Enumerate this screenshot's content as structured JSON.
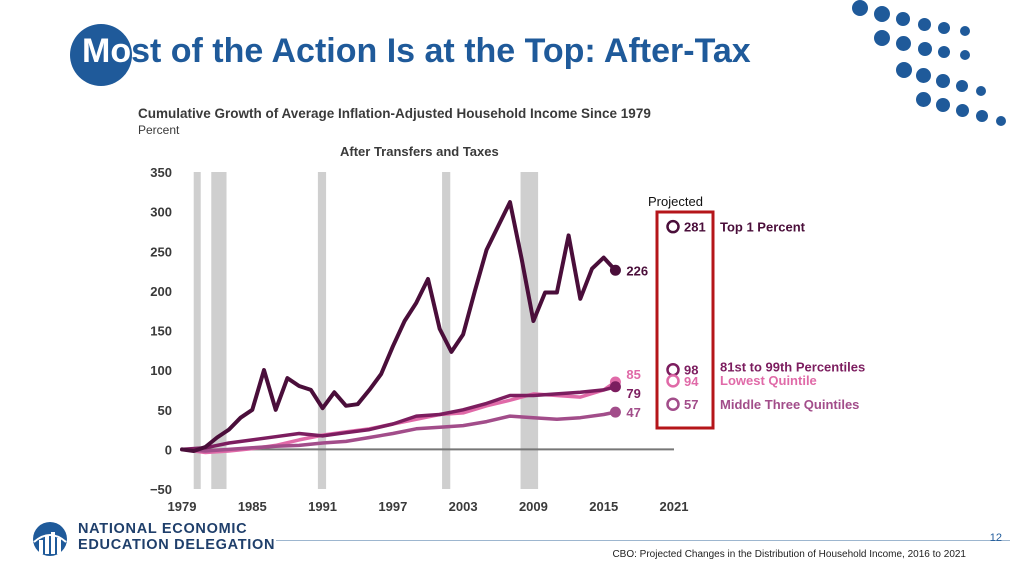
{
  "slide": {
    "title_lead": "Mo",
    "title_rest": "st of the Action Is at the Top: After-Tax",
    "page_number": "12",
    "source": "CBO: Projected Changes in the Distribution of Household Income, 2016 to 2021",
    "org_line1": "NATIONAL ECONOMIC",
    "org_line2": "EDUCATION DELEGATION",
    "accent_color": "#1f5a9a"
  },
  "chart_data": {
    "type": "line",
    "title": "Cumulative Growth of Average Inflation-Adjusted Household Income Since 1979",
    "ylabel": "Percent",
    "subtitle": "After Transfers and Taxes",
    "ylim": [
      -50,
      350
    ],
    "xlim": [
      1979,
      2021
    ],
    "yticks": [
      "350",
      "300",
      "250",
      "200",
      "150",
      "100",
      "50",
      "0",
      "−50"
    ],
    "ytick_values": [
      350,
      300,
      250,
      200,
      150,
      100,
      50,
      0,
      -50
    ],
    "xticks": [
      "1979",
      "1985",
      "1991",
      "1997",
      "2003",
      "2009",
      "2015",
      "2021"
    ],
    "xtick_values": [
      1979,
      1985,
      1991,
      1997,
      2003,
      2009,
      2015,
      2021
    ],
    "recessions": [
      [
        1980,
        1980.6
      ],
      [
        1981.5,
        1982.8
      ],
      [
        1990.6,
        1991.3
      ],
      [
        2001.2,
        2001.9
      ],
      [
        2007.9,
        2009.4
      ]
    ],
    "projected_label": "Projected",
    "series": [
      {
        "name": "Top 1 Percent",
        "color": "#4a0e3a",
        "width": 4,
        "x": [
          1979,
          1980,
          1981,
          1982,
          1983,
          1984,
          1985,
          1986,
          1987,
          1988,
          1989,
          1990,
          1991,
          1992,
          1993,
          1994,
          1995,
          1996,
          1997,
          1998,
          1999,
          2000,
          2001,
          2002,
          2003,
          2004,
          2005,
          2006,
          2007,
          2008,
          2009,
          2010,
          2011,
          2012,
          2013,
          2014,
          2015,
          2016
        ],
        "values": [
          0,
          -2,
          3,
          15,
          25,
          40,
          50,
          100,
          50,
          90,
          80,
          75,
          52,
          72,
          55,
          57,
          75,
          95,
          130,
          162,
          185,
          215,
          152,
          123,
          145,
          200,
          252,
          282,
          312,
          240,
          162,
          198,
          198,
          270,
          190,
          228,
          242,
          226
        ],
        "end_label": "226",
        "projected_value": 281,
        "projected_text": "281",
        "legend": "Top 1 Percent"
      },
      {
        "name": "81st to 99th Percentiles",
        "color": "#7c1d5f",
        "width": 3.5,
        "x": [
          1979,
          1981,
          1983,
          1985,
          1987,
          1989,
          1991,
          1993,
          1995,
          1997,
          1999,
          2001,
          2003,
          2005,
          2007,
          2009,
          2011,
          2013,
          2015,
          2016
        ],
        "values": [
          0,
          2,
          8,
          12,
          16,
          20,
          17,
          21,
          25,
          32,
          42,
          44,
          50,
          58,
          68,
          68,
          70,
          72,
          75,
          79
        ],
        "end_label": "79",
        "projected_value": 98,
        "projected_text": "98",
        "legend": "81st to 99th Percentiles"
      },
      {
        "name": "Lowest Quintile",
        "color": "#e06aa8",
        "width": 3.5,
        "x": [
          1979,
          1981,
          1983,
          1985,
          1987,
          1989,
          1991,
          1993,
          1995,
          1997,
          1999,
          2001,
          2003,
          2005,
          2007,
          2009,
          2011,
          2013,
          2015,
          2016
        ],
        "values": [
          0,
          -4,
          -2,
          1,
          5,
          12,
          18,
          22,
          26,
          32,
          38,
          44,
          46,
          55,
          62,
          70,
          68,
          66,
          75,
          85
        ],
        "end_label": "85",
        "projected_value": 94,
        "projected_text": "94",
        "legend": "Lowest Quintile"
      },
      {
        "name": "Middle Three Quintiles",
        "color": "#a24d8a",
        "width": 3.5,
        "x": [
          1979,
          1981,
          1983,
          1985,
          1987,
          1989,
          1991,
          1993,
          1995,
          1997,
          1999,
          2001,
          2003,
          2005,
          2007,
          2009,
          2011,
          2013,
          2015,
          2016
        ],
        "values": [
          0,
          -2,
          0,
          2,
          4,
          5,
          8,
          10,
          15,
          20,
          26,
          28,
          30,
          35,
          42,
          40,
          38,
          40,
          44,
          47
        ],
        "end_label": "47",
        "projected_value": 57,
        "projected_text": "57",
        "legend": "Middle Three Quintiles"
      }
    ]
  }
}
